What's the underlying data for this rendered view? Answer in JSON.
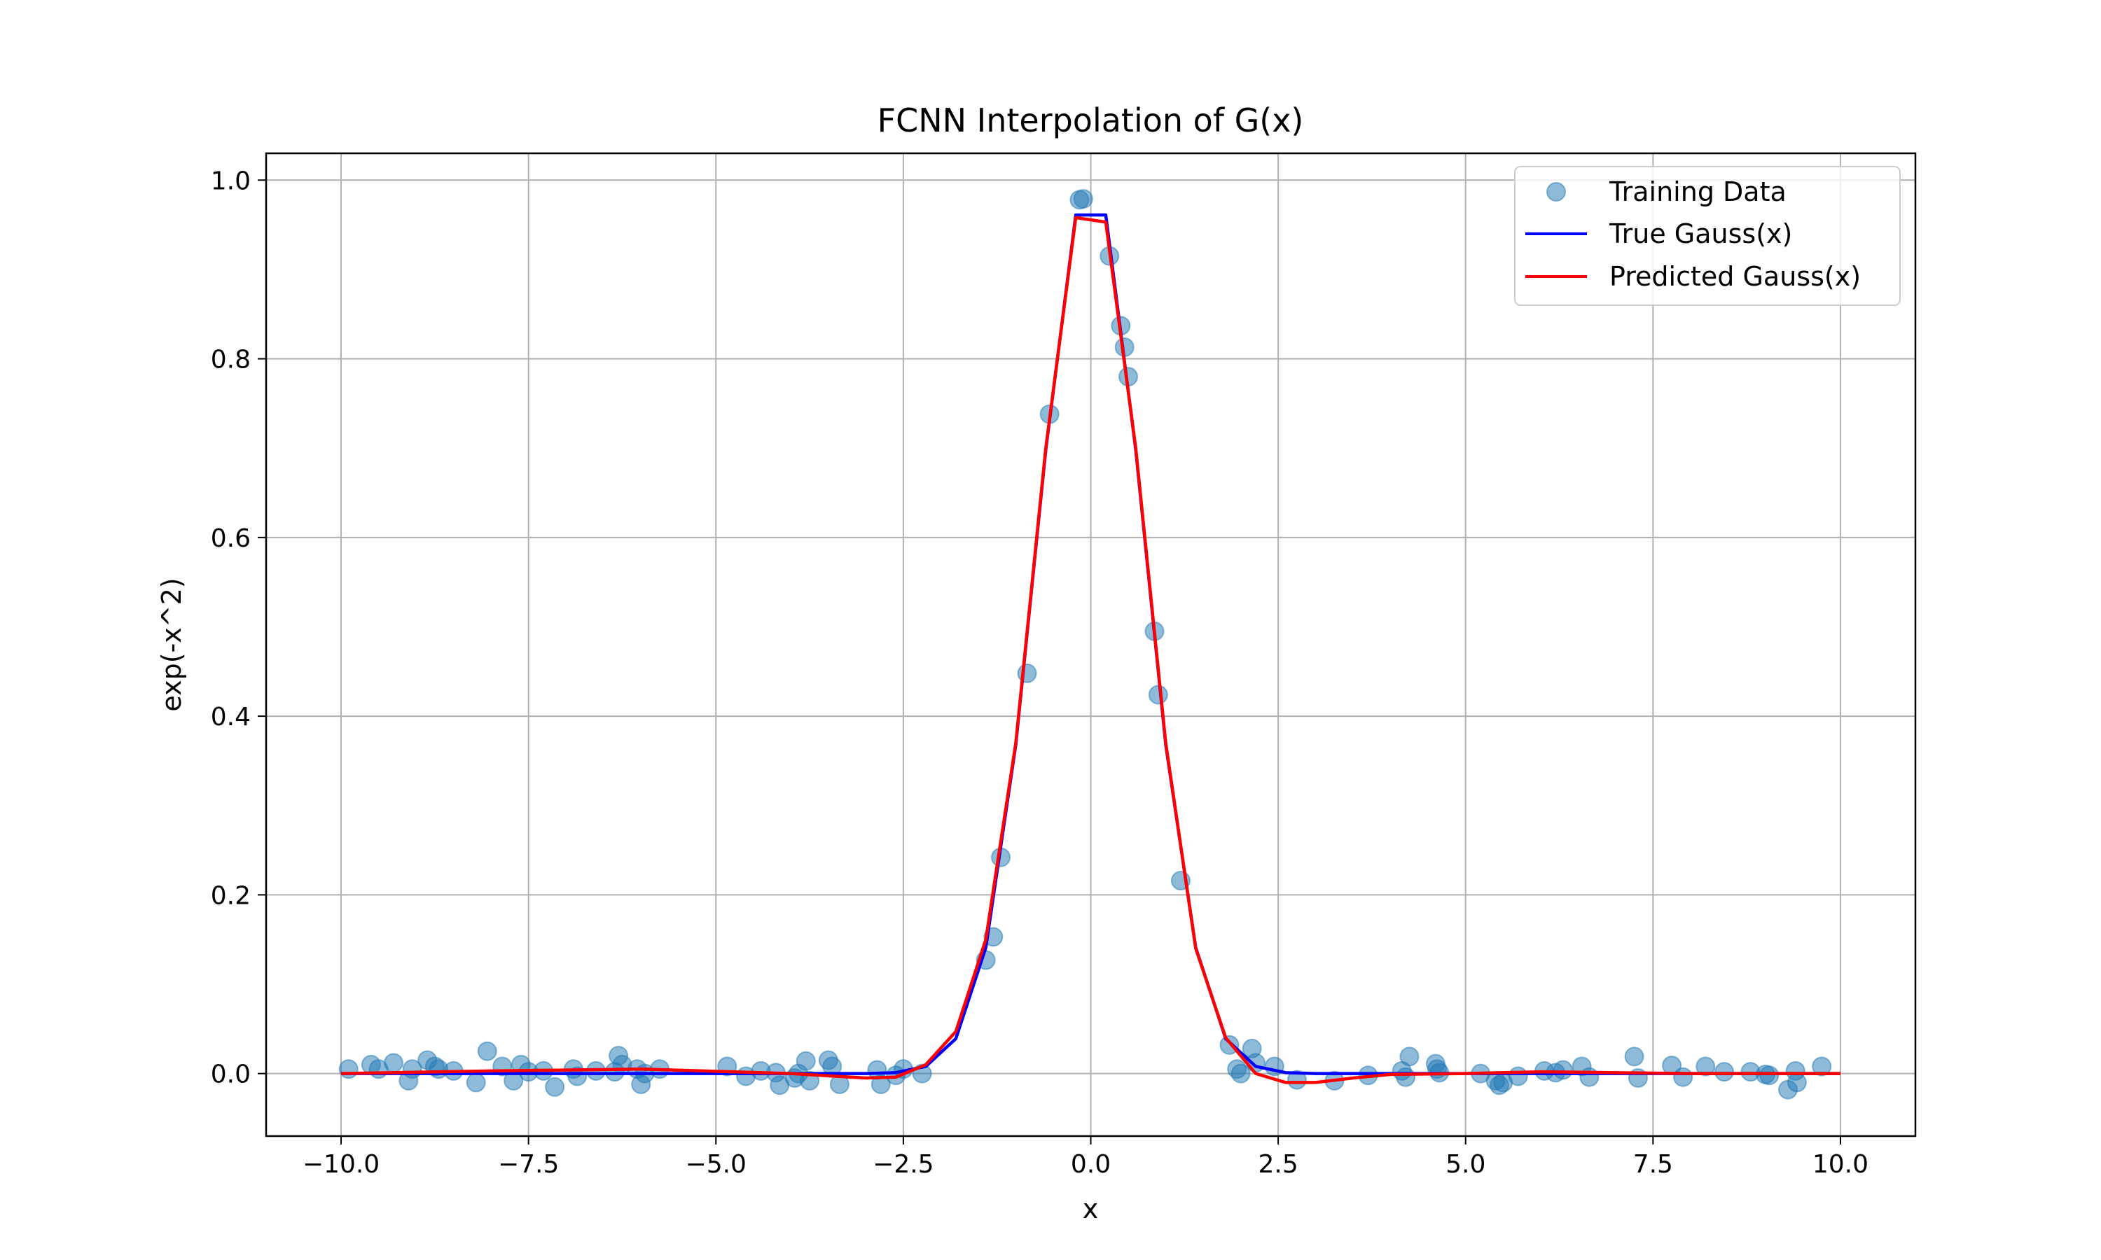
{
  "chart_data": {
    "type": "line",
    "title": "FCNN Interpolation of G(x)",
    "xlabel": "x",
    "ylabel": "exp(-x^2)",
    "xlim": [
      -11,
      11
    ],
    "ylim": [
      -0.07,
      1.03
    ],
    "xticks": [
      -10.0,
      -7.5,
      -5.0,
      -2.5,
      0.0,
      2.5,
      5.0,
      7.5,
      10.0
    ],
    "xtick_labels": [
      "−10.0",
      "−7.5",
      "−5.0",
      "−2.5",
      "0.0",
      "2.5",
      "5.0",
      "7.5",
      "10.0"
    ],
    "yticks": [
      0.0,
      0.2,
      0.4,
      0.6,
      0.8,
      1.0
    ],
    "ytick_labels": [
      "0.0",
      "0.2",
      "0.4",
      "0.6",
      "0.8",
      "1.0"
    ],
    "grid": true,
    "legend_position": "top-right",
    "colors": {
      "training": "#1f77b4",
      "true": "#0000ff",
      "predicted": "#ff0000",
      "grid": "#b0b0b0"
    },
    "series": [
      {
        "name": "Training Data",
        "kind": "scatter",
        "x": [
          -9.9,
          -9.6,
          -9.5,
          -9.3,
          -9.1,
          -9.05,
          -8.85,
          -8.75,
          -8.7,
          -8.5,
          -8.2,
          -8.05,
          -7.85,
          -7.7,
          -7.6,
          -7.5,
          -7.3,
          -7.15,
          -6.9,
          -6.85,
          -6.6,
          -6.35,
          -6.3,
          -6.25,
          -6.05,
          -6.0,
          -5.95,
          -5.75,
          -4.85,
          -4.6,
          -4.4,
          -4.2,
          -4.15,
          -3.95,
          -3.9,
          -3.8,
          -3.75,
          -3.5,
          -3.45,
          -3.35,
          -2.85,
          -2.8,
          -2.6,
          -2.5,
          -2.25,
          -1.4,
          -1.3,
          -1.2,
          -0.85,
          -0.55,
          -0.15,
          -0.1,
          0.25,
          0.4,
          0.45,
          0.5,
          0.85,
          0.9,
          1.2,
          1.85,
          1.95,
          2.0,
          2.15,
          2.2,
          2.45,
          2.75,
          3.25,
          3.7,
          4.15,
          4.2,
          4.25,
          4.6,
          4.62,
          4.65,
          5.2,
          5.4,
          5.45,
          5.5,
          5.7,
          6.05,
          6.2,
          6.3,
          6.55,
          6.65,
          7.25,
          7.3,
          7.75,
          7.9,
          8.2,
          8.45,
          8.8,
          9.0,
          9.05,
          9.3,
          9.4,
          9.42,
          9.75
        ],
        "y": [
          0.005,
          0.01,
          0.005,
          0.012,
          -0.008,
          0.005,
          0.015,
          0.008,
          0.005,
          0.003,
          -0.01,
          0.025,
          0.008,
          -0.008,
          0.01,
          0.002,
          0.003,
          -0.015,
          0.005,
          -0.003,
          0.003,
          0.002,
          0.02,
          0.01,
          0.005,
          -0.012,
          0.0,
          0.005,
          0.008,
          -0.003,
          0.003,
          0.001,
          -0.013,
          -0.005,
          0.0,
          0.014,
          -0.008,
          0.015,
          0.008,
          -0.012,
          0.004,
          -0.012,
          -0.002,
          0.005,
          0.0,
          0.127,
          0.153,
          0.242,
          0.448,
          0.738,
          0.978,
          0.979,
          0.915,
          0.837,
          0.813,
          0.78,
          0.495,
          0.424,
          0.216,
          0.032,
          0.005,
          0.0,
          0.028,
          0.012,
          0.008,
          -0.007,
          -0.008,
          -0.002,
          0.003,
          -0.004,
          0.019,
          0.011,
          0.005,
          0.001,
          0.0,
          -0.008,
          -0.013,
          -0.01,
          -0.003,
          0.003,
          0.001,
          0.004,
          0.008,
          -0.004,
          0.019,
          -0.005,
          0.009,
          -0.004,
          0.008,
          0.002,
          0.002,
          -0.001,
          -0.002,
          -0.018,
          0.003,
          -0.01,
          0.008
        ]
      },
      {
        "name": "True Gauss(x)",
        "kind": "line",
        "x": [
          -10,
          -6,
          -3,
          -2.6,
          -2.2,
          -1.8,
          -1.4,
          -1.0,
          -0.6,
          -0.2,
          0.2,
          0.6,
          1.0,
          1.4,
          1.8,
          2.2,
          2.6,
          3,
          6,
          10
        ],
        "y": [
          0.0,
          0.0,
          0.0,
          0.001,
          0.008,
          0.039,
          0.141,
          0.368,
          0.698,
          0.961,
          0.961,
          0.698,
          0.368,
          0.141,
          0.039,
          0.008,
          0.001,
          0.0,
          0.0,
          0.0
        ]
      },
      {
        "name": "Predicted Gauss(x)",
        "kind": "line",
        "x": [
          -10,
          -8.0,
          -6.0,
          -4.0,
          -3.0,
          -2.6,
          -2.2,
          -1.8,
          -1.4,
          -1.0,
          -0.6,
          -0.2,
          0.2,
          0.6,
          1.0,
          1.4,
          1.8,
          2.2,
          2.6,
          3.0,
          3.5,
          4.0,
          5.0,
          6.0,
          7.0,
          8.0,
          10
        ],
        "y": [
          0.0,
          0.003,
          0.005,
          0.0,
          -0.005,
          -0.004,
          0.01,
          0.047,
          0.15,
          0.37,
          0.7,
          0.958,
          0.953,
          0.7,
          0.37,
          0.14,
          0.04,
          0.0,
          -0.01,
          -0.01,
          -0.005,
          -0.001,
          0.0,
          0.002,
          0.001,
          0.0,
          0.0
        ]
      }
    ]
  }
}
